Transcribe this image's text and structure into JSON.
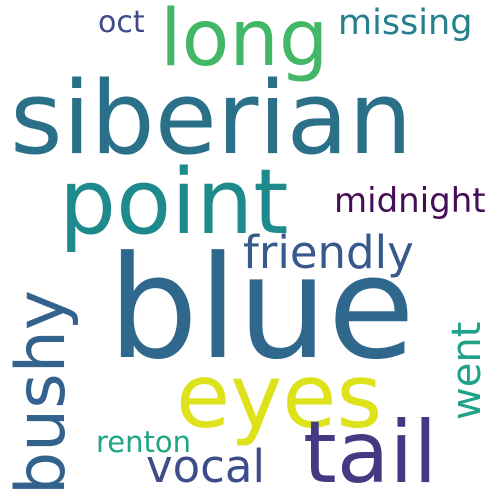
{
  "cloud": {
    "words": [
      {
        "text": "siberian",
        "color": "#2b7089"
      },
      {
        "text": "point",
        "color": "#1f8a8c"
      },
      {
        "text": "long",
        "color": "#42b867"
      },
      {
        "text": "blue",
        "color": "#30688d"
      },
      {
        "text": "eyes",
        "color": "#dde21a"
      },
      {
        "text": "tail",
        "color": "#443a83"
      },
      {
        "text": "vocal",
        "color": "#3d4d8a"
      },
      {
        "text": "friendly",
        "color": "#37598c"
      },
      {
        "text": "midnight",
        "color": "#450d56"
      },
      {
        "text": "missing",
        "color": "#277f8e"
      },
      {
        "text": "oct",
        "color": "#3e4a89"
      },
      {
        "text": "renton",
        "color": "#21a685"
      },
      {
        "text": "bushy",
        "color": "#33638d"
      },
      {
        "text": "went",
        "color": "#1fa287"
      }
    ]
  }
}
